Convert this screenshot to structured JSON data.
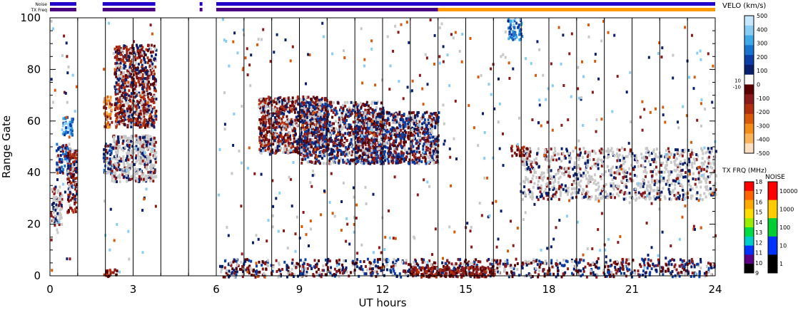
{
  "chart_data": {
    "type": "heatmap",
    "title": "",
    "xlabel": "UT hours",
    "ylabel": "Range Gate",
    "xlim": [
      0,
      24
    ],
    "ylim": [
      0,
      100
    ],
    "x_ticks": [
      0,
      3,
      6,
      9,
      12,
      15,
      18,
      21,
      24
    ],
    "y_ticks": [
      0,
      20,
      40,
      60,
      80,
      100
    ],
    "status_bars": {
      "noise_label": "Noise",
      "txfreq_label": "TX Freq",
      "noise_segments": [
        [
          0,
          0.95
        ],
        [
          1.9,
          3.8
        ],
        [
          5.4,
          5.5
        ],
        [
          6.0,
          24.0
        ]
      ],
      "txfreq_segments": [
        {
          "start": 0.0,
          "end": 0.95,
          "color": "#4b0082"
        },
        {
          "start": 1.9,
          "end": 3.8,
          "color": "#4b0082"
        },
        {
          "start": 5.4,
          "end": 5.5,
          "color": "#4b0082"
        },
        {
          "start": 6.0,
          "end": 14.0,
          "color": "#4b0082"
        },
        {
          "start": 14.0,
          "end": 24.0,
          "color": "#ff9900"
        }
      ]
    },
    "velocity_colorbar": {
      "label": "VELO (km/s)",
      "ticks": [
        "500",
        "400",
        "300",
        "200",
        "100",
        "0",
        "-100",
        "-200",
        "-300",
        "-400",
        "-500"
      ],
      "small_ticks": [
        "10",
        "-10"
      ],
      "colors": [
        "#c6e8ff",
        "#87cdf5",
        "#3fa9e8",
        "#1a73cf",
        "#0b3fa6",
        "#0a1f6b",
        "#ffffff",
        "#5a0000",
        "#8b1a1a",
        "#b0300d",
        "#d65a0a",
        "#f28c1a",
        "#f9b35a",
        "#fde0c0"
      ]
    },
    "txfreq_colorbar": {
      "label": "TX FRQ (MHz)",
      "ticks": [
        "18",
        "17",
        "16",
        "15",
        "14",
        "13",
        "12",
        "11",
        "10",
        "9"
      ],
      "colors": [
        "#ff0000",
        "#ff6600",
        "#ffaa00",
        "#ffdd00",
        "#99ee00",
        "#00dd44",
        "#00cccc",
        "#0033ff",
        "#5a0080",
        "#000000"
      ]
    },
    "noise_colorbar": {
      "label": "NOISE",
      "ticks": [
        "10000",
        "1000",
        "100",
        "10",
        "1"
      ],
      "colors": [
        "#ff0000",
        "#ffcc00",
        "#00cc33",
        "#0033ff",
        "#000000"
      ]
    },
    "scan_gap_lines": [
      1,
      2,
      3,
      4,
      5,
      6,
      7,
      8,
      9,
      10,
      11,
      12,
      13,
      14,
      15,
      16,
      17,
      18,
      19,
      20,
      21,
      22,
      23
    ],
    "echo_regions": [
      {
        "x0": 0.0,
        "x1": 0.4,
        "y0": 20,
        "y1": 35,
        "mix": "grey"
      },
      {
        "x0": 0.2,
        "x1": 0.7,
        "y0": 40,
        "y1": 52,
        "mix": "blue"
      },
      {
        "x0": 0.4,
        "x1": 0.8,
        "y0": 55,
        "y1": 62,
        "mix": "lightblue"
      },
      {
        "x0": 0.6,
        "x1": 0.95,
        "y0": 25,
        "y1": 50,
        "mix": "red"
      },
      {
        "x0": 1.9,
        "x1": 2.2,
        "y0": 40,
        "y1": 52,
        "mix": "blue"
      },
      {
        "x0": 1.9,
        "x1": 2.2,
        "y0": 58,
        "y1": 70,
        "mix": "orange"
      },
      {
        "x0": 2.2,
        "x1": 3.8,
        "y0": 37,
        "y1": 55,
        "mix": "grey"
      },
      {
        "x0": 2.3,
        "x1": 3.8,
        "y0": 58,
        "y1": 90,
        "mix": "red"
      },
      {
        "x0": 7.5,
        "x1": 10.0,
        "y0": 48,
        "y1": 70,
        "mix": "red"
      },
      {
        "x0": 9.0,
        "x1": 12.0,
        "y0": 44,
        "y1": 68,
        "mix": "bluered"
      },
      {
        "x0": 11.0,
        "x1": 14.0,
        "y0": 44,
        "y1": 64,
        "mix": "bluered"
      },
      {
        "x0": 16.5,
        "x1": 17.0,
        "y0": 92,
        "y1": 100,
        "mix": "lightblue"
      },
      {
        "x0": 16.6,
        "x1": 17.3,
        "y0": 47,
        "y1": 51,
        "mix": "darkred"
      },
      {
        "x0": 17.0,
        "x1": 24.0,
        "y0": 30,
        "y1": 50,
        "mix": "grey"
      },
      {
        "x0": 6.1,
        "x1": 24.0,
        "y0": 0,
        "y1": 7,
        "mix": "bluered"
      },
      {
        "x0": 13.0,
        "x1": 16.0,
        "y0": 0,
        "y1": 4,
        "mix": "darkred"
      },
      {
        "x0": 1.9,
        "x1": 2.4,
        "y0": 0,
        "y1": 3,
        "mix": "darkred"
      }
    ]
  }
}
